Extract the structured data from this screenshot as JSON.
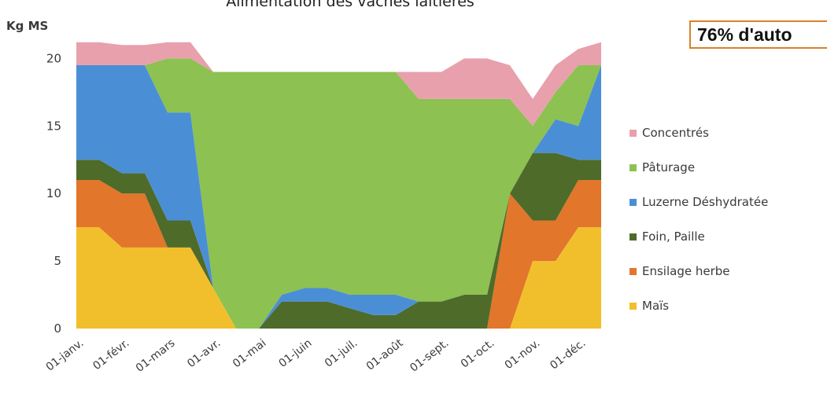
{
  "chart_data": {
    "type": "area",
    "stacked": true,
    "title": "Alimentation des vaches laitières",
    "ylabel": "Kg MS",
    "xlabel": "",
    "ylim": [
      0,
      22
    ],
    "yticks": [
      0,
      5,
      10,
      15,
      20
    ],
    "grid": false,
    "legend_position": "right",
    "callout": "76% d'auto",
    "x_tick_labels": [
      "01-janv.",
      "01-févr.",
      "01-mars",
      "01-avr.",
      "01-mai",
      "01-juin",
      "01-juil.",
      "01-août",
      "01-sept.",
      "01-oct.",
      "01-nov.",
      "01-déc."
    ],
    "x": [
      0,
      0.5,
      1,
      1.5,
      2,
      2.5,
      3,
      3.5,
      4,
      4.5,
      5,
      5.5,
      6,
      6.5,
      7,
      7.5,
      8,
      8.5,
      9,
      9.5,
      10,
      10.5,
      11,
      11.5
    ],
    "series": [
      {
        "name": "Maïs",
        "color": "#f2bf2c",
        "values": [
          7.5,
          7.5,
          6,
          6,
          6,
          6,
          3,
          0,
          0,
          0,
          0,
          0,
          0,
          0,
          0,
          0,
          0,
          0,
          0,
          0,
          5,
          5,
          7.5,
          7.5
        ]
      },
      {
        "name": "Ensilage herbe",
        "color": "#e2762b",
        "values": [
          3.5,
          3.5,
          4,
          4,
          0,
          0,
          0,
          0,
          0,
          0,
          0,
          0,
          0,
          0,
          0,
          0,
          0,
          0,
          0,
          10,
          3,
          3,
          3.5,
          3.5
        ]
      },
      {
        "name": "Foin, Paille",
        "color": "#4e6b2a",
        "values": [
          1.5,
          1.5,
          1.5,
          1.5,
          2,
          2,
          0,
          0,
          0,
          2,
          2,
          2,
          1.5,
          1,
          1,
          2,
          2,
          2.5,
          2.5,
          0,
          5,
          5,
          1.5,
          1.5
        ]
      },
      {
        "name": "Luzerne Déshydratée",
        "color": "#4a8fd6",
        "values": [
          7,
          7,
          8,
          8,
          8,
          8,
          0,
          0,
          0,
          0.5,
          1,
          1,
          1,
          1.5,
          1.5,
          0,
          0,
          0,
          0,
          0,
          0,
          2.5,
          2.5,
          7
        ]
      },
      {
        "name": "Pâturage",
        "color": "#8dc152",
        "values": [
          0,
          0,
          0,
          0,
          4,
          4,
          16,
          19,
          19,
          16.5,
          16,
          16,
          16.5,
          16.5,
          16.5,
          15,
          15,
          14.5,
          14.5,
          7,
          2,
          2,
          4.5,
          0
        ]
      },
      {
        "name": "Concentrés",
        "color": "#e8a0ad",
        "values": [
          1.7,
          1.7,
          1.5,
          1.5,
          1.2,
          1.2,
          0,
          0,
          0,
          0,
          0,
          0,
          0,
          0,
          0,
          2,
          2,
          3,
          3,
          2.5,
          2,
          2,
          1.2,
          1.7
        ]
      }
    ]
  }
}
